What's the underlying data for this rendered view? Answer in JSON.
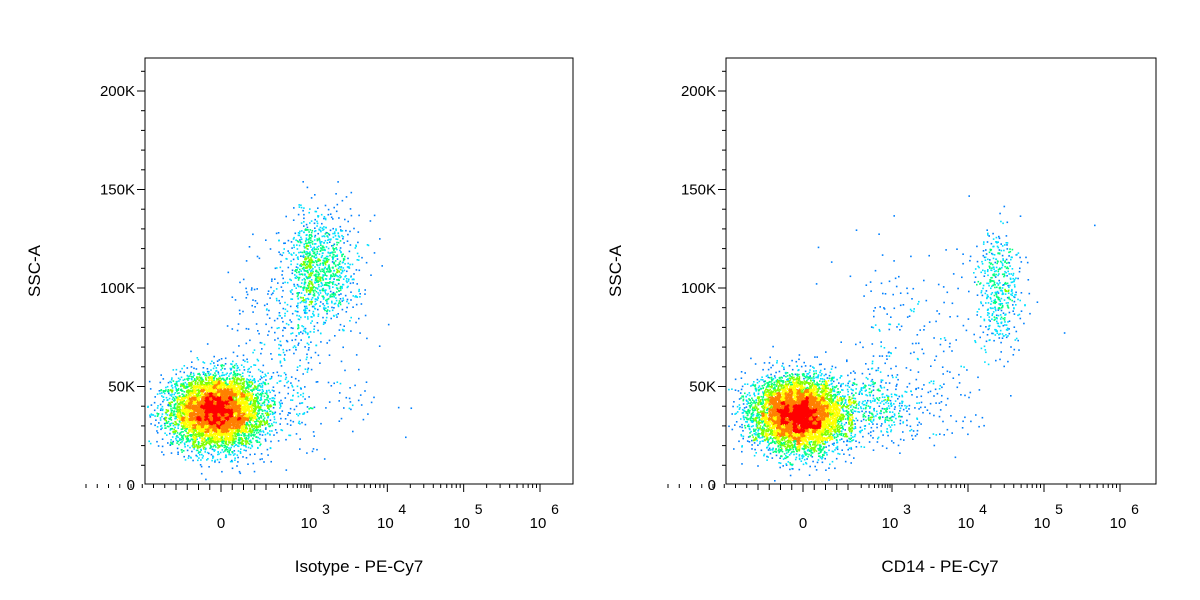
{
  "chart_data": [
    {
      "type": "scatter",
      "subtype": "density",
      "xlabel": "Isotype - PE-Cy7",
      "ylabel": "SSC-A",
      "xscale": "biexponential",
      "yscale": "linear",
      "xlim": [
        -300,
        1000000
      ],
      "ylim": [
        -3000,
        217000
      ],
      "xticks": [
        {
          "value": 0,
          "base": "0",
          "exp": ""
        },
        {
          "value": 1000,
          "base": "10",
          "exp": "3"
        },
        {
          "value": 10000,
          "base": "10",
          "exp": "4"
        },
        {
          "value": 100000,
          "base": "10",
          "exp": "5"
        },
        {
          "value": 1000000,
          "base": "10",
          "exp": "6"
        }
      ],
      "yticks": [
        {
          "value": 0,
          "label": "0"
        },
        {
          "value": 50000,
          "label": "50K"
        },
        {
          "value": 100000,
          "label": "100K"
        },
        {
          "value": 150000,
          "label": "150K"
        },
        {
          "value": 200000,
          "label": "200K"
        }
      ],
      "grid": false,
      "legend": "none",
      "clusters": [
        {
          "x_center": -10,
          "x_spread": 50,
          "y_center": 38000,
          "y_spread": 9000,
          "count": 6500
        },
        {
          "x_center": 1300,
          "x_spread_log": 0.25,
          "y_center": 110000,
          "y_spread": 14000,
          "count": 1000
        },
        {
          "x_center": 300,
          "x_spread_log": 0.5,
          "y_center": 80000,
          "y_spread": 25000,
          "count": 350
        },
        {
          "x_center": 500,
          "x_spread_log": 0.6,
          "y_center": 40000,
          "y_spread": 9000,
          "count": 120
        }
      ]
    },
    {
      "type": "scatter",
      "subtype": "density",
      "xlabel": "CD14 - PE-Cy7",
      "ylabel": "SSC-A",
      "xscale": "biexponential",
      "yscale": "linear",
      "xlim": [
        -300,
        1000000
      ],
      "ylim": [
        -3000,
        217000
      ],
      "xticks": [
        {
          "value": 0,
          "base": "0",
          "exp": ""
        },
        {
          "value": 1000,
          "base": "10",
          "exp": "3"
        },
        {
          "value": 10000,
          "base": "10",
          "exp": "4"
        },
        {
          "value": 100000,
          "base": "10",
          "exp": "5"
        },
        {
          "value": 1000000,
          "base": "10",
          "exp": "6"
        }
      ],
      "yticks": [
        {
          "value": 0,
          "label": "0"
        },
        {
          "value": 50000,
          "label": "50K"
        },
        {
          "value": 100000,
          "label": "100K"
        },
        {
          "value": 150000,
          "label": "150K"
        },
        {
          "value": 200000,
          "label": "200K"
        }
      ],
      "grid": false,
      "legend": "none",
      "clusters": [
        {
          "x_center": -10,
          "x_spread": 50,
          "y_center": 36000,
          "y_spread": 9000,
          "count": 6500
        },
        {
          "x_center": 25000,
          "x_spread_log": 0.15,
          "y_center": 100000,
          "y_spread": 15000,
          "count": 450
        },
        {
          "x_center": 500,
          "x_spread_log": 0.6,
          "y_center": 40000,
          "y_spread": 10000,
          "count": 500
        },
        {
          "x_center": 2000,
          "x_spread_log": 0.7,
          "y_center": 80000,
          "y_spread": 22000,
          "count": 180
        }
      ]
    }
  ],
  "colormap": [
    "#0000ff",
    "#0080ff",
    "#00e0ff",
    "#00ff80",
    "#80ff00",
    "#ffff00",
    "#ff8000",
    "#ff0000"
  ]
}
